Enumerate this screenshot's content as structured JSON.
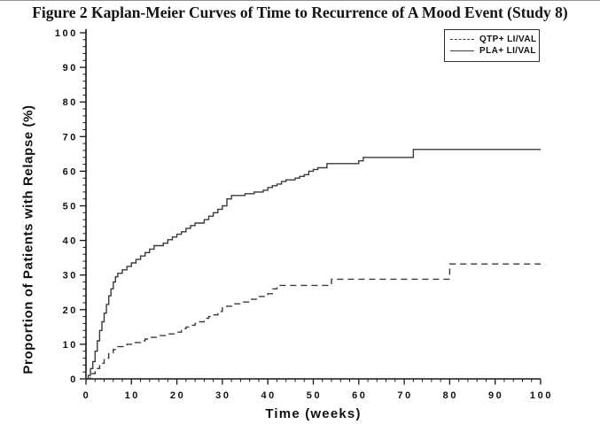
{
  "figure": {
    "background": "#ffffff",
    "curve_color": "#3a3a3a",
    "axis_color": "#161616"
  },
  "chart_data": {
    "type": "line",
    "subtype": "kaplan-meier-step",
    "title": "Figure 2 Kaplan-Meier Curves of Time to Recurrence of A Mood Event (Study 8)",
    "xlabel": "Time (weeks)",
    "ylabel": "Proportion of Patients with Relapse (%)",
    "xlim": [
      0,
      100
    ],
    "ylim": [
      0,
      100
    ],
    "x_major_ticks": [
      0,
      10,
      20,
      30,
      40,
      50,
      60,
      70,
      80,
      90,
      100
    ],
    "y_major_ticks": [
      0,
      10,
      20,
      30,
      40,
      50,
      60,
      70,
      80,
      90,
      100
    ],
    "minor_tick_interval": 2,
    "grid": false,
    "legend_position": "top-right",
    "series": [
      {
        "name": "QTP+ LI/VAL",
        "line_style": "dashed",
        "points": [
          [
            0,
            0
          ],
          [
            1,
            1.5
          ],
          [
            2,
            3
          ],
          [
            3,
            4.5
          ],
          [
            4,
            6
          ],
          [
            5,
            7.5
          ],
          [
            6,
            8.5
          ],
          [
            7,
            9.3
          ],
          [
            9,
            10
          ],
          [
            10,
            10.5
          ],
          [
            12,
            11
          ],
          [
            13,
            11.5
          ],
          [
            14,
            12
          ],
          [
            16,
            12.5
          ],
          [
            18,
            13
          ],
          [
            20,
            13.5
          ],
          [
            21,
            14.5
          ],
          [
            22,
            15
          ],
          [
            23,
            15.5
          ],
          [
            24,
            16
          ],
          [
            25,
            16.5
          ],
          [
            26,
            17.5
          ],
          [
            27,
            18
          ],
          [
            28,
            18.5
          ],
          [
            29,
            19.5
          ],
          [
            30,
            20.5
          ],
          [
            31,
            21
          ],
          [
            32,
            21.7
          ],
          [
            34,
            22.2
          ],
          [
            36,
            23
          ],
          [
            38,
            23.8
          ],
          [
            40,
            24.6
          ],
          [
            41,
            26
          ],
          [
            42,
            27
          ],
          [
            54,
            28.8
          ],
          [
            80,
            33.2
          ],
          [
            100,
            33.2
          ]
        ]
      },
      {
        "name": "PLA+ LI/VAL",
        "line_style": "solid",
        "points": [
          [
            0,
            0
          ],
          [
            0.5,
            1
          ],
          [
            1,
            3
          ],
          [
            1.5,
            5
          ],
          [
            2,
            8
          ],
          [
            2.5,
            11
          ],
          [
            3,
            14
          ],
          [
            3.5,
            16.5
          ],
          [
            4,
            19
          ],
          [
            4.5,
            21.5
          ],
          [
            5,
            24
          ],
          [
            5.5,
            26
          ],
          [
            6,
            28
          ],
          [
            6.5,
            29.5
          ],
          [
            7,
            30.5
          ],
          [
            8,
            31.5
          ],
          [
            9,
            32.5
          ],
          [
            10,
            33.5
          ],
          [
            11,
            34.5
          ],
          [
            12,
            35.5
          ],
          [
            13,
            36.5
          ],
          [
            14,
            37.5
          ],
          [
            15,
            38.5
          ],
          [
            17,
            39.2
          ],
          [
            18,
            40.2
          ],
          [
            19,
            41
          ],
          [
            20,
            41.8
          ],
          [
            21,
            42.5
          ],
          [
            22,
            43.5
          ],
          [
            23,
            44.3
          ],
          [
            24,
            45
          ],
          [
            26,
            46
          ],
          [
            27,
            47
          ],
          [
            28,
            48
          ],
          [
            29,
            49
          ],
          [
            30,
            50
          ],
          [
            31,
            52
          ],
          [
            32,
            53
          ],
          [
            35,
            53.5
          ],
          [
            37,
            54
          ],
          [
            39,
            54.5
          ],
          [
            40,
            55.3
          ],
          [
            41,
            55.8
          ],
          [
            42,
            56.3
          ],
          [
            43,
            57
          ],
          [
            44,
            57.5
          ],
          [
            46,
            58
          ],
          [
            47,
            58.5
          ],
          [
            48,
            59
          ],
          [
            49,
            60
          ],
          [
            50,
            60.5
          ],
          [
            51,
            61
          ],
          [
            53,
            62.2
          ],
          [
            60,
            63
          ],
          [
            61,
            64
          ],
          [
            72,
            66.3
          ],
          [
            100,
            66.3
          ]
        ]
      }
    ]
  }
}
